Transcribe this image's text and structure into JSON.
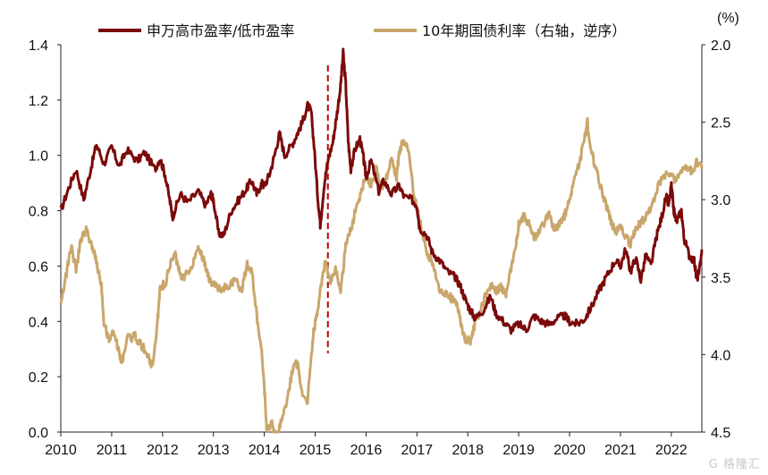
{
  "chart_data": {
    "type": "line",
    "title": "",
    "xlabel": "",
    "ylabel": "",
    "right_axis_unit": "(%)",
    "x_ticks": [
      "2010",
      "2011",
      "2012",
      "2013",
      "2014",
      "2015",
      "2016",
      "2017",
      "2018",
      "2019",
      "2020",
      "2021",
      "2022"
    ],
    "left_axis": {
      "ylim": [
        0.0,
        1.4
      ],
      "ticks": [
        "1.4",
        "1.2",
        "1.0",
        "0.8",
        "0.6",
        "0.4",
        "0.2",
        "0.0"
      ]
    },
    "right_axis": {
      "ylim": [
        2.0,
        4.5
      ],
      "inverted": true,
      "ticks": [
        "2.0",
        "2.5",
        "3.0",
        "3.5",
        "4.0",
        "4.5"
      ]
    },
    "legend_position": "top",
    "grid": false,
    "vline": {
      "x": 2015.25,
      "style": "dashed",
      "color": "#C00000"
    },
    "series": [
      {
        "name": "申万高市盈率/低市盈率",
        "axis": "left",
        "color": "#7B0A0A",
        "points": [
          [
            2010.0,
            0.8
          ],
          [
            2010.15,
            0.88
          ],
          [
            2010.3,
            0.95
          ],
          [
            2010.45,
            0.84
          ],
          [
            2010.6,
            0.96
          ],
          [
            2010.7,
            1.04
          ],
          [
            2010.85,
            0.97
          ],
          [
            2011.0,
            1.03
          ],
          [
            2011.15,
            0.96
          ],
          [
            2011.3,
            1.02
          ],
          [
            2011.5,
            0.98
          ],
          [
            2011.65,
            1.01
          ],
          [
            2011.85,
            0.95
          ],
          [
            2011.95,
            0.99
          ],
          [
            2012.05,
            0.93
          ],
          [
            2012.15,
            0.83
          ],
          [
            2012.2,
            0.78
          ],
          [
            2012.35,
            0.86
          ],
          [
            2012.5,
            0.83
          ],
          [
            2012.7,
            0.87
          ],
          [
            2012.85,
            0.82
          ],
          [
            2012.95,
            0.86
          ],
          [
            2013.0,
            0.84
          ],
          [
            2013.1,
            0.72
          ],
          [
            2013.2,
            0.71
          ],
          [
            2013.35,
            0.8
          ],
          [
            2013.5,
            0.84
          ],
          [
            2013.65,
            0.88
          ],
          [
            2013.75,
            0.91
          ],
          [
            2013.85,
            0.86
          ],
          [
            2013.95,
            0.9
          ],
          [
            2014.0,
            0.89
          ],
          [
            2014.1,
            0.93
          ],
          [
            2014.2,
            1.0
          ],
          [
            2014.3,
            1.08
          ],
          [
            2014.4,
            1.0
          ],
          [
            2014.55,
            1.04
          ],
          [
            2014.65,
            1.08
          ],
          [
            2014.75,
            1.12
          ],
          [
            2014.85,
            1.18
          ],
          [
            2014.92,
            1.16
          ],
          [
            2014.98,
            1.03
          ],
          [
            2015.05,
            0.85
          ],
          [
            2015.1,
            0.75
          ],
          [
            2015.18,
            0.9
          ],
          [
            2015.25,
            0.98
          ],
          [
            2015.35,
            1.05
          ],
          [
            2015.42,
            1.14
          ],
          [
            2015.5,
            1.25
          ],
          [
            2015.55,
            1.37
          ],
          [
            2015.6,
            1.26
          ],
          [
            2015.65,
            1.05
          ],
          [
            2015.7,
            0.95
          ],
          [
            2015.78,
            1.02
          ],
          [
            2015.88,
            1.06
          ],
          [
            2015.95,
            0.99
          ],
          [
            2016.0,
            0.92
          ],
          [
            2016.1,
            0.98
          ],
          [
            2016.25,
            0.87
          ],
          [
            2016.35,
            0.91
          ],
          [
            2016.5,
            0.86
          ],
          [
            2016.65,
            0.89
          ],
          [
            2016.75,
            0.85
          ],
          [
            2016.9,
            0.84
          ],
          [
            2017.0,
            0.82
          ],
          [
            2017.05,
            0.74
          ],
          [
            2017.2,
            0.71
          ],
          [
            2017.3,
            0.65
          ],
          [
            2017.45,
            0.62
          ],
          [
            2017.6,
            0.58
          ],
          [
            2017.75,
            0.56
          ],
          [
            2017.85,
            0.53
          ],
          [
            2017.95,
            0.48
          ],
          [
            2018.05,
            0.44
          ],
          [
            2018.15,
            0.41
          ],
          [
            2018.3,
            0.44
          ],
          [
            2018.45,
            0.49
          ],
          [
            2018.55,
            0.43
          ],
          [
            2018.7,
            0.4
          ],
          [
            2018.85,
            0.37
          ],
          [
            2019.0,
            0.39
          ],
          [
            2019.15,
            0.37
          ],
          [
            2019.3,
            0.42
          ],
          [
            2019.45,
            0.4
          ],
          [
            2019.6,
            0.39
          ],
          [
            2019.75,
            0.41
          ],
          [
            2019.9,
            0.42
          ],
          [
            2020.0,
            0.4
          ],
          [
            2020.15,
            0.39
          ],
          [
            2020.3,
            0.41
          ],
          [
            2020.45,
            0.46
          ],
          [
            2020.6,
            0.52
          ],
          [
            2020.75,
            0.57
          ],
          [
            2020.9,
            0.62
          ],
          [
            2021.0,
            0.6
          ],
          [
            2021.1,
            0.66
          ],
          [
            2021.2,
            0.58
          ],
          [
            2021.3,
            0.63
          ],
          [
            2021.4,
            0.55
          ],
          [
            2021.5,
            0.64
          ],
          [
            2021.6,
            0.6
          ],
          [
            2021.7,
            0.7
          ],
          [
            2021.8,
            0.77
          ],
          [
            2021.9,
            0.85
          ],
          [
            2021.95,
            0.82
          ],
          [
            2022.0,
            0.89
          ],
          [
            2022.05,
            0.8
          ],
          [
            2022.1,
            0.76
          ],
          [
            2022.2,
            0.8
          ],
          [
            2022.25,
            0.7
          ],
          [
            2022.35,
            0.64
          ],
          [
            2022.45,
            0.62
          ],
          [
            2022.5,
            0.55
          ],
          [
            2022.55,
            0.58
          ],
          [
            2022.6,
            0.66
          ]
        ]
      },
      {
        "name": "10年期国债利率（右轴，逆序）",
        "axis": "right",
        "color": "#C9A66B",
        "points": [
          [
            2010.0,
            3.65
          ],
          [
            2010.1,
            3.5
          ],
          [
            2010.2,
            3.3
          ],
          [
            2010.3,
            3.45
          ],
          [
            2010.4,
            3.25
          ],
          [
            2010.5,
            3.2
          ],
          [
            2010.6,
            3.28
          ],
          [
            2010.7,
            3.4
          ],
          [
            2010.8,
            3.55
          ],
          [
            2010.85,
            3.8
          ],
          [
            2010.95,
            3.9
          ],
          [
            2011.05,
            3.85
          ],
          [
            2011.15,
            4.0
          ],
          [
            2011.2,
            4.05
          ],
          [
            2011.3,
            3.9
          ],
          [
            2011.45,
            3.88
          ],
          [
            2011.55,
            3.92
          ],
          [
            2011.7,
            4.0
          ],
          [
            2011.8,
            4.08
          ],
          [
            2011.9,
            3.8
          ],
          [
            2011.95,
            3.55
          ],
          [
            2012.05,
            3.55
          ],
          [
            2012.15,
            3.42
          ],
          [
            2012.25,
            3.35
          ],
          [
            2012.35,
            3.5
          ],
          [
            2012.5,
            3.48
          ],
          [
            2012.6,
            3.4
          ],
          [
            2012.7,
            3.3
          ],
          [
            2012.8,
            3.38
          ],
          [
            2012.9,
            3.5
          ],
          [
            2013.0,
            3.55
          ],
          [
            2013.15,
            3.58
          ],
          [
            2013.3,
            3.55
          ],
          [
            2013.45,
            3.52
          ],
          [
            2013.55,
            3.6
          ],
          [
            2013.65,
            3.42
          ],
          [
            2013.75,
            3.45
          ],
          [
            2013.85,
            3.75
          ],
          [
            2013.95,
            4.0
          ],
          [
            2014.0,
            4.2
          ],
          [
            2014.05,
            4.5
          ],
          [
            2014.15,
            4.45
          ],
          [
            2014.25,
            4.55
          ],
          [
            2014.35,
            4.4
          ],
          [
            2014.45,
            4.3
          ],
          [
            2014.55,
            4.1
          ],
          [
            2014.65,
            4.05
          ],
          [
            2014.75,
            4.25
          ],
          [
            2014.85,
            4.3
          ],
          [
            2014.95,
            3.9
          ],
          [
            2015.0,
            3.8
          ],
          [
            2015.1,
            3.6
          ],
          [
            2015.2,
            3.4
          ],
          [
            2015.3,
            3.55
          ],
          [
            2015.4,
            3.45
          ],
          [
            2015.5,
            3.6
          ],
          [
            2015.6,
            3.3
          ],
          [
            2015.7,
            3.2
          ],
          [
            2015.8,
            3.05
          ],
          [
            2015.9,
            2.95
          ],
          [
            2016.0,
            2.85
          ],
          [
            2016.1,
            2.9
          ],
          [
            2016.2,
            2.8
          ],
          [
            2016.3,
            2.95
          ],
          [
            2016.4,
            2.85
          ],
          [
            2016.5,
            2.75
          ],
          [
            2016.6,
            2.85
          ],
          [
            2016.65,
            2.7
          ],
          [
            2016.75,
            2.6
          ],
          [
            2016.85,
            2.72
          ],
          [
            2016.95,
            3.0
          ],
          [
            2017.0,
            3.05
          ],
          [
            2017.1,
            3.2
          ],
          [
            2017.2,
            3.35
          ],
          [
            2017.3,
            3.4
          ],
          [
            2017.4,
            3.55
          ],
          [
            2017.5,
            3.6
          ],
          [
            2017.6,
            3.6
          ],
          [
            2017.7,
            3.65
          ],
          [
            2017.8,
            3.7
          ],
          [
            2017.9,
            3.85
          ],
          [
            2017.95,
            3.9
          ],
          [
            2018.05,
            3.92
          ],
          [
            2018.15,
            3.78
          ],
          [
            2018.25,
            3.72
          ],
          [
            2018.35,
            3.62
          ],
          [
            2018.45,
            3.55
          ],
          [
            2018.55,
            3.6
          ],
          [
            2018.65,
            3.55
          ],
          [
            2018.75,
            3.62
          ],
          [
            2018.85,
            3.45
          ],
          [
            2018.95,
            3.3
          ],
          [
            2019.0,
            3.15
          ],
          [
            2019.1,
            3.1
          ],
          [
            2019.2,
            3.15
          ],
          [
            2019.3,
            3.25
          ],
          [
            2019.4,
            3.2
          ],
          [
            2019.5,
            3.15
          ],
          [
            2019.6,
            3.1
          ],
          [
            2019.7,
            3.2
          ],
          [
            2019.8,
            3.15
          ],
          [
            2019.9,
            3.1
          ],
          [
            2020.0,
            3.0
          ],
          [
            2020.1,
            2.85
          ],
          [
            2020.2,
            2.75
          ],
          [
            2020.3,
            2.6
          ],
          [
            2020.35,
            2.5
          ],
          [
            2020.4,
            2.65
          ],
          [
            2020.5,
            2.78
          ],
          [
            2020.6,
            2.9
          ],
          [
            2020.7,
            3.02
          ],
          [
            2020.8,
            3.12
          ],
          [
            2020.9,
            3.22
          ],
          [
            2021.0,
            3.18
          ],
          [
            2021.1,
            3.25
          ],
          [
            2021.2,
            3.28
          ],
          [
            2021.3,
            3.2
          ],
          [
            2021.4,
            3.15
          ],
          [
            2021.5,
            3.1
          ],
          [
            2021.6,
            3.05
          ],
          [
            2021.7,
            2.95
          ],
          [
            2021.8,
            2.88
          ],
          [
            2021.9,
            2.82
          ],
          [
            2022.0,
            2.85
          ],
          [
            2022.1,
            2.88
          ],
          [
            2022.2,
            2.82
          ],
          [
            2022.3,
            2.78
          ],
          [
            2022.4,
            2.82
          ],
          [
            2022.5,
            2.76
          ],
          [
            2022.6,
            2.8
          ]
        ]
      }
    ]
  }
}
